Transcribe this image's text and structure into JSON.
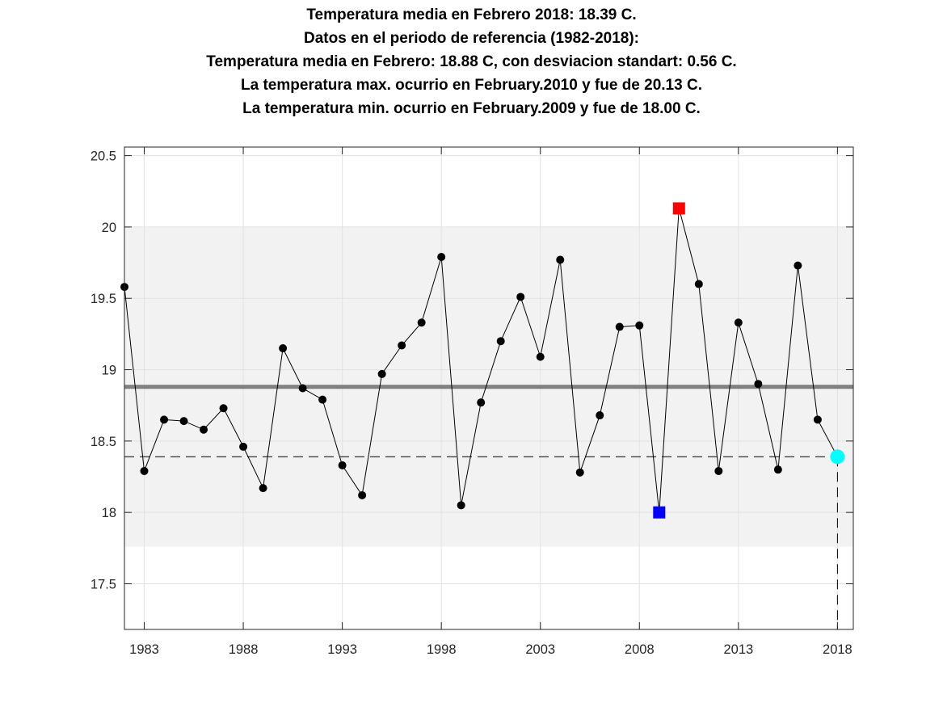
{
  "titles": [
    "Temperatura media en Febrero 2018: 18.39 C.",
    "Datos en el periodo de referencia (1982-2018):",
    "Temperatura media en Febrero: 18.88 C, con desviacion standart: 0.56 C.",
    "La temperatura max. ocurrio en February.2010 y fue de 20.13 C.",
    "La temperatura min. ocurrio en February.2009 y fue de 18.00 C."
  ],
  "chart_data": {
    "type": "line",
    "title": "",
    "xlabel": "",
    "ylabel": "",
    "xlim": [
      1982,
      2018.8
    ],
    "ylim": [
      17.18,
      20.56
    ],
    "xticks": [
      1983,
      1988,
      1993,
      1998,
      2003,
      2008,
      2013,
      2018
    ],
    "xtick_labels": [
      "1983",
      "1988",
      "1993",
      "1998",
      "2003",
      "2008",
      "2013",
      "2018"
    ],
    "yticks": [
      17.5,
      18,
      18.5,
      19,
      19.5,
      20,
      20.5
    ],
    "ytick_labels": [
      "17.5",
      "18",
      "18.5",
      "19",
      "19.5",
      "20",
      "20.5"
    ],
    "grid": true,
    "x": [
      1982,
      1983,
      1984,
      1985,
      1986,
      1987,
      1988,
      1989,
      1990,
      1991,
      1992,
      1993,
      1994,
      1995,
      1996,
      1997,
      1998,
      1999,
      2000,
      2001,
      2002,
      2003,
      2004,
      2005,
      2006,
      2007,
      2008,
      2009,
      2010,
      2011,
      2012,
      2013,
      2014,
      2015,
      2016,
      2017,
      2018
    ],
    "series": [
      {
        "values": [
          19.58,
          18.29,
          18.65,
          18.64,
          18.58,
          18.73,
          18.46,
          18.17,
          19.15,
          18.87,
          18.79,
          18.33,
          18.12,
          18.97,
          19.17,
          19.33,
          19.79,
          18.05,
          18.77,
          19.2,
          19.51,
          19.09,
          19.77,
          18.28,
          18.68,
          19.3,
          19.31,
          18.0,
          20.13,
          19.6,
          18.29,
          19.33,
          18.9,
          18.3,
          19.73,
          18.65,
          18.39
        ],
        "color": "#000000"
      }
    ],
    "mean": 18.88,
    "std": 0.56,
    "band": [
      17.76,
      20.0
    ],
    "current": {
      "year": 2018,
      "value": 18.39,
      "color": "#00ffff"
    },
    "max": {
      "year": 2010,
      "value": 20.13,
      "color": "#ff0000"
    },
    "min": {
      "year": 2009,
      "value": 18.0,
      "color": "#0000ff"
    },
    "band_color": "#f2f2f2",
    "mean_line_color": "#808080"
  }
}
